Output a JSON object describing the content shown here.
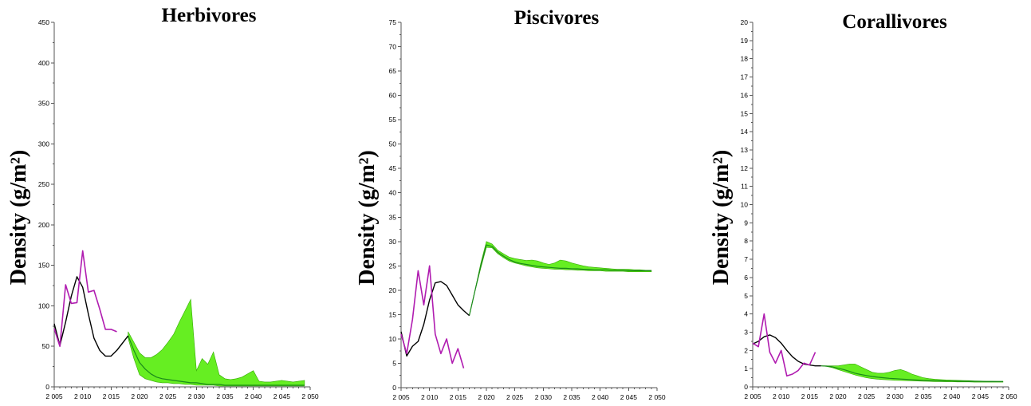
{
  "chart_data": [
    {
      "type": "line",
      "title": "Herbivores",
      "ylabel": "Density (g/m²)",
      "xlim": [
        2005,
        2050
      ],
      "ylim": [
        0,
        450
      ],
      "xticks": [
        2005,
        2010,
        2015,
        2020,
        2025,
        2030,
        2035,
        2040,
        2045,
        2050
      ],
      "xtick_labels": [
        "2 005",
        "2 010",
        "2 015",
        "2 020",
        "2 025",
        "2 030",
        "2 035",
        "2 040",
        "2 045",
        "2 050"
      ],
      "yticks": [
        0,
        50,
        100,
        150,
        200,
        250,
        300,
        350,
        400,
        450
      ],
      "ytick_labels": [
        "0",
        "50",
        "100",
        "150",
        "200",
        "250",
        "300",
        "350",
        "400",
        "450"
      ],
      "colors": {
        "observed": "#b01cb0",
        "fit": "#000000",
        "band": "#66ee22",
        "median": "#1a8a1a"
      },
      "observed": {
        "x": [
          2005,
          2006,
          2007,
          2008,
          2009,
          2010,
          2011,
          2012,
          2013,
          2014,
          2015,
          2016
        ],
        "y": [
          72,
          50,
          126,
          103,
          104,
          168,
          117,
          119,
          96,
          71,
          71,
          68
        ]
      },
      "fit": {
        "x": [
          2005,
          2006,
          2007,
          2008,
          2009,
          2010,
          2011,
          2012,
          2013,
          2014,
          2015,
          2016,
          2017,
          2018
        ],
        "y": [
          78,
          51,
          80,
          112,
          136,
          123,
          90,
          60,
          45,
          38,
          38,
          45,
          54,
          63
        ]
      },
      "band": {
        "x": [
          2018,
          2019,
          2020,
          2021,
          2022,
          2023,
          2024,
          2025,
          2026,
          2027,
          2028,
          2029,
          2030,
          2031,
          2032,
          2033,
          2034,
          2035,
          2036,
          2037,
          2038,
          2039,
          2040,
          2041,
          2042,
          2043,
          2044,
          2045,
          2046,
          2047,
          2048,
          2049
        ],
        "upper": [
          68,
          55,
          42,
          36,
          36,
          40,
          46,
          55,
          65,
          80,
          94,
          108,
          20,
          35,
          28,
          43,
          15,
          10,
          9,
          10,
          12,
          16,
          20,
          7,
          6,
          6,
          7,
          8,
          7,
          6,
          7,
          8
        ],
        "lower": [
          60,
          35,
          15,
          10,
          8,
          6,
          5,
          5,
          4,
          4,
          3,
          3,
          2,
          2,
          2,
          2,
          1,
          1,
          1,
          1,
          1,
          1,
          1,
          1,
          1,
          1,
          1,
          1,
          1,
          1,
          1,
          1
        ]
      },
      "median": {
        "x": [
          2016,
          2017,
          2018,
          2019,
          2020,
          2021,
          2022,
          2023,
          2024,
          2025,
          2026,
          2027,
          2028,
          2029,
          2030,
          2031,
          2032,
          2033,
          2034,
          2035,
          2036,
          2037,
          2038,
          2039,
          2040,
          2041,
          2042,
          2043,
          2044,
          2045,
          2046,
          2047,
          2048,
          2049
        ],
        "y": [
          45,
          54,
          63,
          45,
          30,
          22,
          16,
          12,
          10,
          9,
          8,
          7,
          6,
          5,
          5,
          4,
          3,
          3,
          3,
          2,
          2,
          2,
          2,
          2,
          2,
          2,
          2,
          2,
          2,
          2,
          2,
          2,
          2,
          2
        ]
      }
    },
    {
      "type": "line",
      "title": "Piscivores",
      "ylabel": "Density (g/m²)",
      "xlim": [
        2005,
        2050
      ],
      "ylim": [
        0,
        75
      ],
      "xticks": [
        2005,
        2010,
        2015,
        2020,
        2025,
        2030,
        2035,
        2040,
        2045,
        2050
      ],
      "xtick_labels": [
        "2 005",
        "2 010",
        "2 015",
        "2 020",
        "2 025",
        "2 030",
        "2 035",
        "2 040",
        "2 045",
        "2 050"
      ],
      "yticks": [
        0,
        5,
        10,
        15,
        20,
        25,
        30,
        35,
        40,
        45,
        50,
        55,
        60,
        65,
        70,
        75
      ],
      "ytick_labels": [
        "0",
        "5",
        "10",
        "15",
        "20",
        "25",
        "30",
        "35",
        "40",
        "45",
        "50",
        "55",
        "60",
        "65",
        "70",
        "75"
      ],
      "colors": {
        "observed": "#b01cb0",
        "fit": "#000000",
        "band": "#66ee22",
        "median": "#1a8a1a"
      },
      "observed": {
        "x": [
          2005,
          2006,
          2007,
          2008,
          2009,
          2010,
          2011,
          2012,
          2013,
          2014,
          2015,
          2016
        ],
        "y": [
          11,
          7,
          14,
          24,
          17,
          25,
          11,
          7,
          10,
          5,
          8,
          4
        ]
      },
      "fit": {
        "x": [
          2005,
          2006,
          2007,
          2008,
          2009,
          2010,
          2011,
          2012,
          2013,
          2014,
          2015,
          2016,
          2017
        ],
        "y": [
          11.5,
          6.5,
          8.5,
          9.5,
          13,
          18,
          21.5,
          21.8,
          21,
          19,
          17,
          15.8,
          14.8
        ]
      },
      "band": {
        "x": [
          2017,
          2018,
          2019,
          2020,
          2021,
          2022,
          2023,
          2024,
          2025,
          2026,
          2027,
          2028,
          2029,
          2030,
          2031,
          2032,
          2033,
          2034,
          2035,
          2036,
          2037,
          2038,
          2039,
          2040,
          2041,
          2042,
          2043,
          2044,
          2045,
          2046,
          2047,
          2048,
          2049
        ],
        "upper": [
          15,
          20,
          25.5,
          30,
          29.5,
          28.2,
          27.5,
          26.8,
          26.5,
          26.3,
          26.1,
          26.2,
          26,
          25.6,
          25.3,
          25.6,
          26.2,
          26,
          25.6,
          25.3,
          25,
          24.8,
          24.7,
          24.6,
          24.5,
          24.4,
          24.3,
          24.3,
          24.3,
          24.2,
          24.2,
          24.1,
          24.1
        ],
        "lower": [
          14.8,
          19.8,
          24.5,
          28.8,
          28.7,
          27.5,
          26.7,
          26,
          25.6,
          25.3,
          25,
          24.8,
          24.6,
          24.5,
          24.4,
          24.3,
          24.3,
          24.2,
          24.2,
          24.1,
          24.1,
          24,
          24,
          24,
          23.9,
          23.9,
          23.9,
          23.9,
          23.8,
          23.8,
          23.8,
          23.8,
          23.8
        ]
      },
      "median": {
        "x": [
          2017,
          2018,
          2019,
          2020,
          2021,
          2022,
          2023,
          2024,
          2025,
          2026,
          2027,
          2028,
          2029,
          2030,
          2031,
          2032,
          2033,
          2034,
          2035,
          2036,
          2037,
          2038,
          2039,
          2040,
          2041,
          2042,
          2043,
          2044,
          2045,
          2046,
          2047,
          2048,
          2049
        ],
        "y": [
          14.8,
          19.9,
          25,
          29.3,
          29,
          27.8,
          27,
          26.3,
          25.8,
          25.5,
          25.3,
          25.1,
          24.9,
          24.8,
          24.7,
          24.6,
          24.5,
          24.5,
          24.4,
          24.4,
          24.3,
          24.3,
          24.2,
          24.2,
          24.2,
          24.1,
          24.1,
          24.1,
          24,
          24,
          24,
          24,
          24
        ]
      }
    },
    {
      "type": "line",
      "title": "Corallivores",
      "ylabel": "Density (g/m²)",
      "xlim": [
        2005,
        2050
      ],
      "ylim": [
        0,
        20
      ],
      "xticks": [
        2005,
        2010,
        2015,
        2020,
        2025,
        2030,
        2035,
        2040,
        2045,
        2050
      ],
      "xtick_labels": [
        "2 005",
        "2 010",
        "2 015",
        "2 020",
        "2 025",
        "2 030",
        "2 035",
        "2 040",
        "2 045",
        "2 050"
      ],
      "yticks": [
        0,
        1,
        2,
        3,
        4,
        5,
        6,
        7,
        8,
        9,
        10,
        11,
        12,
        13,
        14,
        15,
        16,
        17,
        18,
        19,
        20
      ],
      "ytick_labels": [
        "0",
        "1",
        "2",
        "3",
        "4",
        "5",
        "6",
        "7",
        "8",
        "9",
        "10",
        "11",
        "12",
        "13",
        "14",
        "15",
        "16",
        "17",
        "18",
        "19",
        "20"
      ],
      "colors": {
        "observed": "#b01cb0",
        "fit": "#000000",
        "band": "#66ee22",
        "median": "#1a8a1a"
      },
      "observed": {
        "x": [
          2005,
          2006,
          2007,
          2008,
          2009,
          2010,
          2011,
          2012,
          2013,
          2014,
          2015,
          2016
        ],
        "y": [
          2.4,
          2.2,
          4.0,
          1.9,
          1.3,
          2.0,
          0.6,
          0.7,
          0.9,
          1.3,
          1.2,
          1.9
        ]
      },
      "fit": {
        "x": [
          2005,
          2006,
          2007,
          2008,
          2009,
          2010,
          2011,
          2012,
          2013,
          2014,
          2015,
          2016,
          2017
        ],
        "y": [
          2.35,
          2.5,
          2.75,
          2.85,
          2.7,
          2.4,
          2.0,
          1.65,
          1.4,
          1.25,
          1.2,
          1.15,
          1.15
        ]
      },
      "band": {
        "x": [
          2017,
          2018,
          2019,
          2020,
          2021,
          2022,
          2023,
          2024,
          2025,
          2026,
          2027,
          2028,
          2029,
          2030,
          2031,
          2032,
          2033,
          2034,
          2035,
          2036,
          2037,
          2038,
          2039,
          2040,
          2041,
          2042,
          2043,
          2044,
          2045,
          2046,
          2047,
          2048,
          2049
        ],
        "upper": [
          1.15,
          1.15,
          1.15,
          1.15,
          1.2,
          1.25,
          1.25,
          1.1,
          0.95,
          0.8,
          0.75,
          0.75,
          0.8,
          0.9,
          0.95,
          0.85,
          0.7,
          0.6,
          0.5,
          0.45,
          0.42,
          0.4,
          0.38,
          0.37,
          0.36,
          0.35,
          0.34,
          0.33,
          0.32,
          0.31,
          0.31,
          0.3,
          0.3
        ],
        "lower": [
          1.15,
          1.12,
          1.05,
          0.95,
          0.85,
          0.75,
          0.65,
          0.57,
          0.5,
          0.45,
          0.42,
          0.4,
          0.38,
          0.36,
          0.35,
          0.34,
          0.33,
          0.32,
          0.31,
          0.3,
          0.29,
          0.29,
          0.28,
          0.28,
          0.27,
          0.27,
          0.27,
          0.26,
          0.26,
          0.26,
          0.26,
          0.26,
          0.26
        ]
      },
      "median": {
        "x": [
          2017,
          2018,
          2019,
          2020,
          2021,
          2022,
          2023,
          2024,
          2025,
          2026,
          2027,
          2028,
          2029,
          2030,
          2031,
          2032,
          2033,
          2034,
          2035,
          2036,
          2037,
          2038,
          2039,
          2040,
          2041,
          2042,
          2043,
          2044,
          2045,
          2046,
          2047,
          2048,
          2049
        ],
        "y": [
          1.15,
          1.14,
          1.1,
          1.02,
          0.95,
          0.85,
          0.75,
          0.68,
          0.62,
          0.57,
          0.53,
          0.5,
          0.47,
          0.45,
          0.43,
          0.41,
          0.39,
          0.37,
          0.36,
          0.35,
          0.34,
          0.33,
          0.32,
          0.32,
          0.31,
          0.31,
          0.3,
          0.3,
          0.3,
          0.29,
          0.29,
          0.29,
          0.29
        ]
      }
    }
  ]
}
